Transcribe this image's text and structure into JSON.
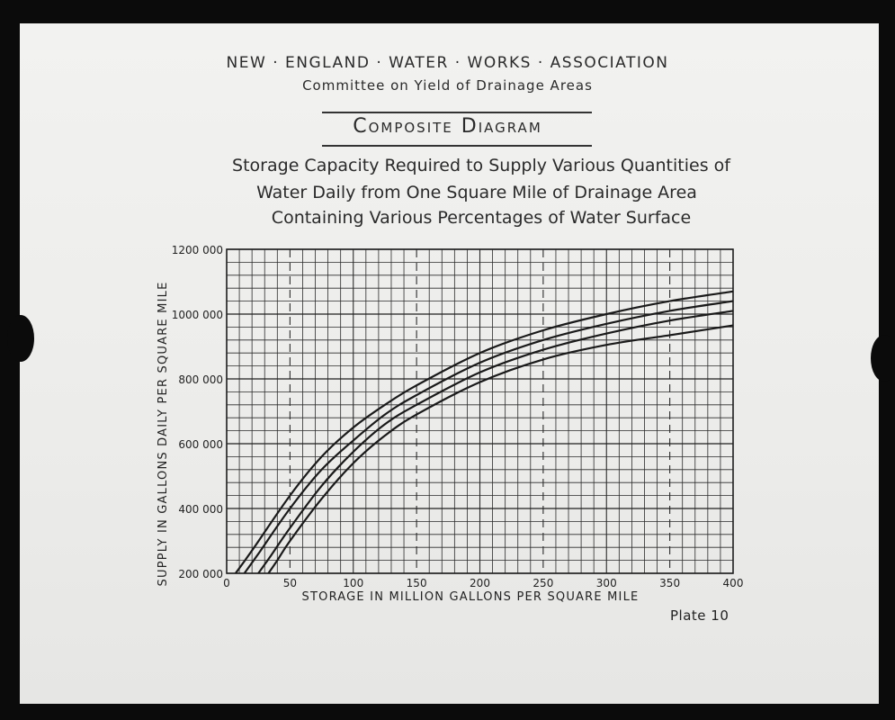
{
  "header": {
    "org": "NEW · ENGLAND · WATER · WORKS · ASSOCIATION",
    "committee": "Committee on Yield of Drainage Areas",
    "title": "Composite Diagram",
    "subtitle_lines": [
      "Storage Capacity Required to Supply Various Quantities of",
      "Water Daily from One Square Mile of Drainage Area",
      "Containing Various Percentages of Water Surface"
    ]
  },
  "plate_label": "Plate 10",
  "chart_data": {
    "type": "line",
    "xlabel": "STORAGE IN MILLION GALLONS PER SQUARE MILE",
    "ylabel": "SUPPLY IN GALLONS DAILY PER SQUARE MILE",
    "xlim": [
      0,
      400
    ],
    "ylim": [
      200000,
      1200000
    ],
    "x_ticks": [
      0,
      50,
      100,
      150,
      200,
      250,
      300,
      350,
      400
    ],
    "x_tick_labels": [
      "0",
      "50",
      "100",
      "150",
      "200",
      "250",
      "300",
      "350",
      "400"
    ],
    "y_ticks": [
      200000,
      400000,
      600000,
      800000,
      1000000,
      1200000
    ],
    "y_tick_labels": [
      "200 000",
      "400 000",
      "600 000",
      "800 000",
      "1000 000",
      "1200 000"
    ],
    "grid": true,
    "minor_grid_step": {
      "x": 10,
      "y": 40000
    },
    "dashed_x_lines": [
      50,
      150,
      250,
      350
    ],
    "line_color": "#1a1a1a",
    "series": [
      {
        "x": [
          7,
          20,
          50,
          75,
          100,
          125,
          150,
          200,
          250,
          300,
          350,
          400
        ],
        "values": [
          200000,
          270000,
          440000,
          560000,
          650000,
          720000,
          780000,
          880000,
          950000,
          1000000,
          1040000,
          1070000
        ]
      },
      {
        "x": [
          14,
          25,
          50,
          75,
          100,
          125,
          150,
          200,
          250,
          300,
          350,
          400
        ],
        "values": [
          200000,
          260000,
          400000,
          520000,
          610000,
          690000,
          750000,
          850000,
          920000,
          970000,
          1010000,
          1040000
        ]
      },
      {
        "x": [
          25,
          35,
          50,
          75,
          100,
          125,
          150,
          200,
          250,
          300,
          350,
          400
        ],
        "values": [
          200000,
          255000,
          340000,
          470000,
          575000,
          660000,
          720000,
          820000,
          890000,
          940000,
          980000,
          1010000
        ]
      },
      {
        "x": [
          33,
          40,
          50,
          75,
          100,
          125,
          150,
          200,
          250,
          300,
          350,
          400
        ],
        "values": [
          200000,
          240000,
          300000,
          430000,
          540000,
          625000,
          690000,
          790000,
          860000,
          905000,
          935000,
          965000
        ]
      }
    ]
  }
}
